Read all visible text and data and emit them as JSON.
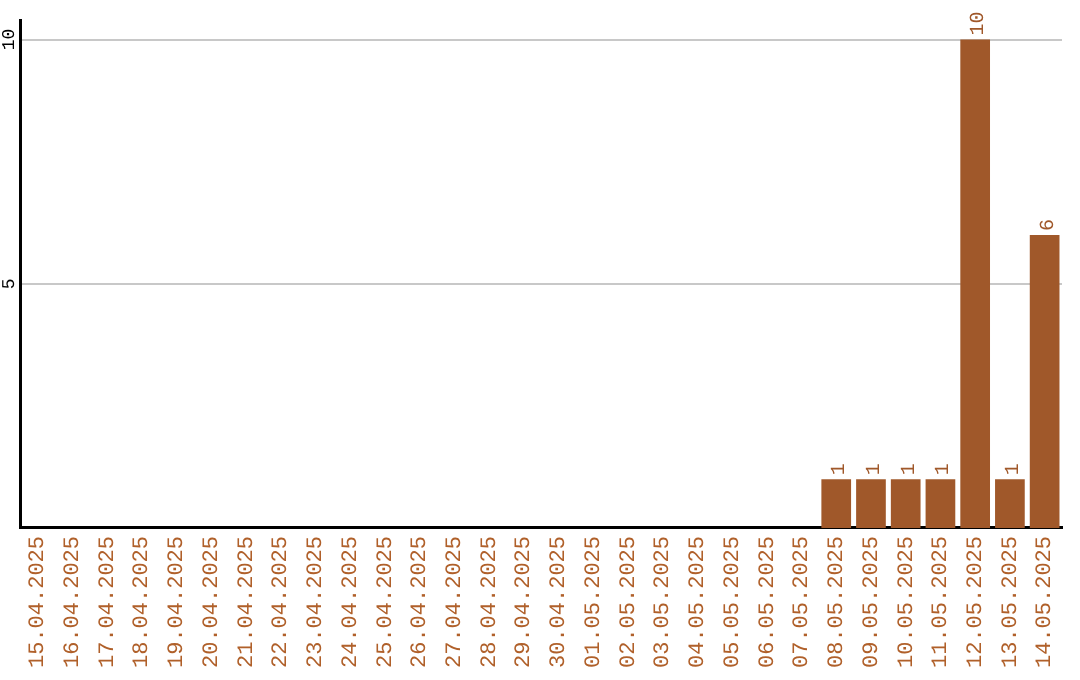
{
  "chart_data": {
    "type": "bar",
    "categories": [
      "15.04.2025",
      "16.04.2025",
      "17.04.2025",
      "18.04.2025",
      "19.04.2025",
      "20.04.2025",
      "21.04.2025",
      "22.04.2025",
      "23.04.2025",
      "24.04.2025",
      "25.04.2025",
      "26.04.2025",
      "27.04.2025",
      "28.04.2025",
      "29.04.2025",
      "30.04.2025",
      "01.05.2025",
      "02.05.2025",
      "03.05.2025",
      "04.05.2025",
      "05.05.2025",
      "06.05.2025",
      "07.05.2025",
      "08.05.2025",
      "09.05.2025",
      "10.05.2025",
      "11.05.2025",
      "12.05.2025",
      "13.05.2025",
      "14.05.2025"
    ],
    "values": [
      0,
      0,
      0,
      0,
      0,
      0,
      0,
      0,
      0,
      0,
      0,
      0,
      0,
      0,
      0,
      0,
      0,
      0,
      0,
      0,
      0,
      0,
      0,
      1,
      1,
      1,
      1,
      10,
      1,
      6
    ],
    "value_labels": [
      null,
      null,
      null,
      null,
      null,
      null,
      null,
      null,
      null,
      null,
      null,
      null,
      null,
      null,
      null,
      null,
      null,
      null,
      null,
      null,
      null,
      null,
      null,
      "1",
      "1",
      "1",
      "1",
      "10",
      "1",
      "6"
    ],
    "color": "#a0582a",
    "ylim": [
      0,
      10.4
    ],
    "yticks": [
      5,
      10
    ],
    "grid": "y",
    "legend": false
  }
}
